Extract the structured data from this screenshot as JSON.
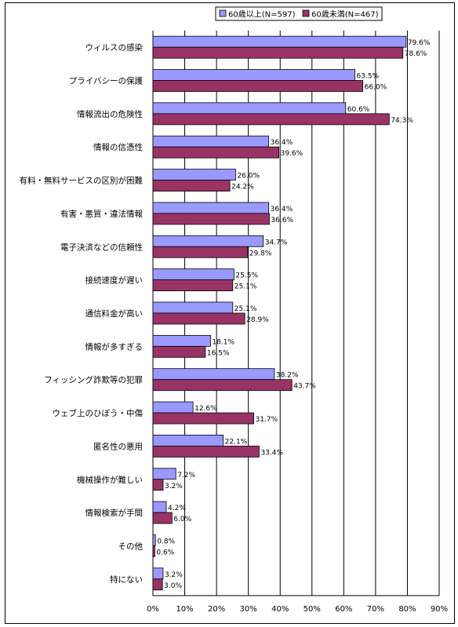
{
  "chart_data": {
    "type": "bar",
    "orientation": "horizontal",
    "categories": [
      "ウィルスの感染",
      "プライバシーの保護",
      "情報流出の危険性",
      "情報の信憑性",
      "有料・無料サービスの区別が困難",
      "有害・悪質・違法情報",
      "電子決済などの信頼性",
      "接続速度が遅い",
      "通信料金が高い",
      "情報が多すぎる",
      "フィッシング詐欺等の犯罪",
      "ウェブ上のひぼう・中傷",
      "匿名性の悪用",
      "機械操作が難しい",
      "情報検索が手間",
      "その他",
      "特にない"
    ],
    "series": [
      {
        "name": "60歳以上(N=597)",
        "color": "#9999ff",
        "values": [
          79.6,
          63.5,
          60.6,
          36.4,
          26.0,
          36.4,
          34.7,
          25.5,
          25.1,
          18.1,
          38.2,
          12.6,
          22.1,
          7.2,
          4.2,
          0.8,
          3.2
        ],
        "labels": [
          "79.6%",
          "63.5%",
          "60.6%",
          "36.4%",
          "26.0%",
          "36.4%",
          "34.7%",
          "25.5%",
          "25.1%",
          "18.1%",
          "38.2%",
          "12.6%",
          "22.1%",
          "7.2%",
          "4.2%",
          "0.8%",
          "3.2%"
        ]
      },
      {
        "name": "60歳未満(N=467)",
        "color": "#993366",
        "values": [
          78.6,
          66.0,
          74.3,
          39.6,
          24.2,
          36.6,
          29.8,
          25.1,
          28.9,
          16.5,
          43.7,
          31.7,
          33.4,
          3.2,
          6.0,
          0.6,
          3.0
        ],
        "labels": [
          "78.6%",
          "66.0%",
          "74.3%",
          "39.6%",
          "24.2%",
          "36.6%",
          "29.8%",
          "25.1%",
          "28.9%",
          "16.5%",
          "43.7%",
          "31.7%",
          "33.4%",
          "3.2%",
          "6.0%",
          "0.6%",
          "3.0%"
        ]
      }
    ],
    "xlim": [
      0,
      90
    ],
    "ticks": [
      "0%",
      "10%",
      "20%",
      "30%",
      "40%",
      "50%",
      "60%",
      "70%",
      "80%",
      "90%"
    ],
    "grid": true,
    "legend_position": "top-right"
  }
}
